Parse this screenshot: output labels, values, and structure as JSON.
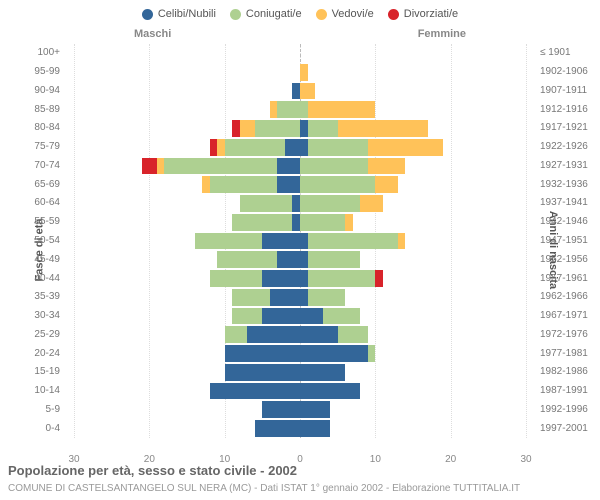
{
  "legend": [
    {
      "label": "Celibi/Nubili",
      "color": "#336699"
    },
    {
      "label": "Coniugati/e",
      "color": "#aed091"
    },
    {
      "label": "Vedovi/e",
      "color": "#ffc259"
    },
    {
      "label": "Divorziati/e",
      "color": "#d8232a"
    }
  ],
  "gender_labels": {
    "male": "Maschi",
    "female": "Femmine"
  },
  "y_title_left": "Fasce di età",
  "y_title_right": "Anni di nascita",
  "x_ticks": [
    30,
    20,
    10,
    0,
    10,
    20,
    30
  ],
  "x_max": 30,
  "title": "Popolazione per età, sesso e stato civile - 2002",
  "subtitle": "COMUNE DI CASTELSANTANGELO SUL NERA (MC) - Dati ISTAT 1° gennaio 2002 - Elaborazione TUTTITALIA.IT",
  "rows": [
    {
      "age": "100+",
      "year": "≤ 1901",
      "m": {
        "c": 0,
        "k": 0,
        "v": 0,
        "d": 0
      },
      "f": {
        "c": 0,
        "k": 0,
        "v": 0,
        "d": 0
      }
    },
    {
      "age": "95-99",
      "year": "1902-1906",
      "m": {
        "c": 0,
        "k": 0,
        "v": 0,
        "d": 0
      },
      "f": {
        "c": 0,
        "k": 0,
        "v": 1,
        "d": 0
      }
    },
    {
      "age": "90-94",
      "year": "1907-1911",
      "m": {
        "c": 1,
        "k": 0,
        "v": 0,
        "d": 0
      },
      "f": {
        "c": 0,
        "k": 0,
        "v": 2,
        "d": 0
      }
    },
    {
      "age": "85-89",
      "year": "1912-1916",
      "m": {
        "c": 0,
        "k": 3,
        "v": 1,
        "d": 0
      },
      "f": {
        "c": 0,
        "k": 1,
        "v": 9,
        "d": 0
      }
    },
    {
      "age": "80-84",
      "year": "1917-1921",
      "m": {
        "c": 0,
        "k": 6,
        "v": 2,
        "d": 1
      },
      "f": {
        "c": 1,
        "k": 4,
        "v": 12,
        "d": 0
      }
    },
    {
      "age": "75-79",
      "year": "1922-1926",
      "m": {
        "c": 2,
        "k": 8,
        "v": 1,
        "d": 1
      },
      "f": {
        "c": 1,
        "k": 8,
        "v": 10,
        "d": 0
      }
    },
    {
      "age": "70-74",
      "year": "1927-1931",
      "m": {
        "c": 3,
        "k": 15,
        "v": 1,
        "d": 2
      },
      "f": {
        "c": 0,
        "k": 9,
        "v": 5,
        "d": 0
      }
    },
    {
      "age": "65-69",
      "year": "1932-1936",
      "m": {
        "c": 3,
        "k": 9,
        "v": 1,
        "d": 0
      },
      "f": {
        "c": 0,
        "k": 10,
        "v": 3,
        "d": 0
      }
    },
    {
      "age": "60-64",
      "year": "1937-1941",
      "m": {
        "c": 1,
        "k": 7,
        "v": 0,
        "d": 0
      },
      "f": {
        "c": 0,
        "k": 8,
        "v": 3,
        "d": 0
      }
    },
    {
      "age": "55-59",
      "year": "1942-1946",
      "m": {
        "c": 1,
        "k": 8,
        "v": 0,
        "d": 0
      },
      "f": {
        "c": 0,
        "k": 6,
        "v": 1,
        "d": 0
      }
    },
    {
      "age": "50-54",
      "year": "1947-1951",
      "m": {
        "c": 5,
        "k": 9,
        "v": 0,
        "d": 0
      },
      "f": {
        "c": 1,
        "k": 12,
        "v": 1,
        "d": 0
      }
    },
    {
      "age": "45-49",
      "year": "1952-1956",
      "m": {
        "c": 3,
        "k": 8,
        "v": 0,
        "d": 0
      },
      "f": {
        "c": 1,
        "k": 7,
        "v": 0,
        "d": 0
      }
    },
    {
      "age": "40-44",
      "year": "1957-1961",
      "m": {
        "c": 5,
        "k": 7,
        "v": 0,
        "d": 0
      },
      "f": {
        "c": 1,
        "k": 9,
        "v": 0,
        "d": 1
      }
    },
    {
      "age": "35-39",
      "year": "1962-1966",
      "m": {
        "c": 4,
        "k": 5,
        "v": 0,
        "d": 0
      },
      "f": {
        "c": 1,
        "k": 5,
        "v": 0,
        "d": 0
      }
    },
    {
      "age": "30-34",
      "year": "1967-1971",
      "m": {
        "c": 5,
        "k": 4,
        "v": 0,
        "d": 0
      },
      "f": {
        "c": 3,
        "k": 5,
        "v": 0,
        "d": 0
      }
    },
    {
      "age": "25-29",
      "year": "1972-1976",
      "m": {
        "c": 7,
        "k": 3,
        "v": 0,
        "d": 0
      },
      "f": {
        "c": 5,
        "k": 4,
        "v": 0,
        "d": 0
      }
    },
    {
      "age": "20-24",
      "year": "1977-1981",
      "m": {
        "c": 10,
        "k": 0,
        "v": 0,
        "d": 0
      },
      "f": {
        "c": 9,
        "k": 1,
        "v": 0,
        "d": 0
      }
    },
    {
      "age": "15-19",
      "year": "1982-1986",
      "m": {
        "c": 10,
        "k": 0,
        "v": 0,
        "d": 0
      },
      "f": {
        "c": 6,
        "k": 0,
        "v": 0,
        "d": 0
      }
    },
    {
      "age": "10-14",
      "year": "1987-1991",
      "m": {
        "c": 12,
        "k": 0,
        "v": 0,
        "d": 0
      },
      "f": {
        "c": 8,
        "k": 0,
        "v": 0,
        "d": 0
      }
    },
    {
      "age": "5-9",
      "year": "1992-1996",
      "m": {
        "c": 5,
        "k": 0,
        "v": 0,
        "d": 0
      },
      "f": {
        "c": 4,
        "k": 0,
        "v": 0,
        "d": 0
      }
    },
    {
      "age": "0-4",
      "year": "1997-2001",
      "m": {
        "c": 6,
        "k": 0,
        "v": 0,
        "d": 0
      },
      "f": {
        "c": 4,
        "k": 0,
        "v": 0,
        "d": 0
      }
    }
  ],
  "series_colors": {
    "c": "#336699",
    "k": "#aed091",
    "v": "#ffc259",
    "d": "#d8232a"
  },
  "background": "#ffffff",
  "grid_color": "#dddddd"
}
